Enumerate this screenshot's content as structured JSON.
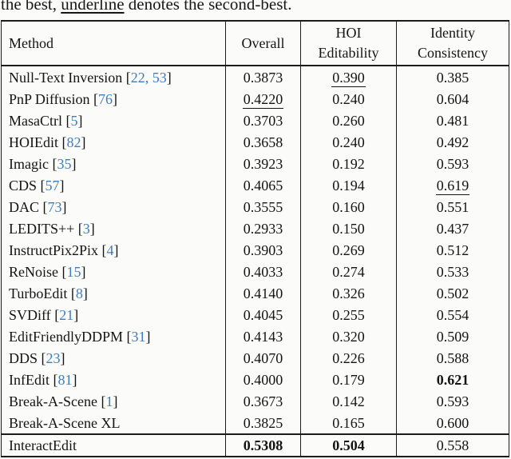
{
  "caption": {
    "prefix": "the best, ",
    "underlined_word": "underline",
    "suffix": " denotes the second-best."
  },
  "colors": {
    "citation_link": "#3d7dbf",
    "text": "#141414"
  },
  "table": {
    "headers": {
      "method": "Method",
      "overall": "Overall",
      "hoi_line1": "HOI",
      "hoi_line2": "Editability",
      "identity_line1": "Identity",
      "identity_line2": "Consistency"
    },
    "rows": [
      {
        "method": "Null-Text Inversion",
        "cite": "22, 53",
        "overall": "0.3873",
        "overall_s": "",
        "hoi": "0.390",
        "hoi_s": "u",
        "identity": "0.385",
        "identity_s": ""
      },
      {
        "method": "PnP Diffusion",
        "cite": "76",
        "overall": "0.4220",
        "overall_s": "u",
        "hoi": "0.240",
        "hoi_s": "",
        "identity": "0.604",
        "identity_s": ""
      },
      {
        "method": "MasaCtrl",
        "cite": "5",
        "overall": "0.3703",
        "overall_s": "",
        "hoi": "0.260",
        "hoi_s": "",
        "identity": "0.481",
        "identity_s": ""
      },
      {
        "method": "HOIEdit",
        "cite": "82",
        "overall": "0.3658",
        "overall_s": "",
        "hoi": "0.240",
        "hoi_s": "",
        "identity": "0.492",
        "identity_s": ""
      },
      {
        "method": "Imagic",
        "cite": "35",
        "overall": "0.3923",
        "overall_s": "",
        "hoi": "0.192",
        "hoi_s": "",
        "identity": "0.593",
        "identity_s": ""
      },
      {
        "method": "CDS",
        "cite": "57",
        "overall": "0.4065",
        "overall_s": "",
        "hoi": "0.194",
        "hoi_s": "",
        "identity": "0.619",
        "identity_s": "u"
      },
      {
        "method": "DAC",
        "cite": "73",
        "overall": "0.3555",
        "overall_s": "",
        "hoi": "0.160",
        "hoi_s": "",
        "identity": "0.551",
        "identity_s": ""
      },
      {
        "method": "LEDITS++",
        "cite": "3",
        "overall": "0.2933",
        "overall_s": "",
        "hoi": "0.150",
        "hoi_s": "",
        "identity": "0.437",
        "identity_s": ""
      },
      {
        "method": "InstructPix2Pix",
        "cite": "4",
        "overall": "0.3903",
        "overall_s": "",
        "hoi": "0.269",
        "hoi_s": "",
        "identity": "0.512",
        "identity_s": ""
      },
      {
        "method": "ReNoise",
        "cite": "15",
        "overall": "0.4033",
        "overall_s": "",
        "hoi": "0.274",
        "hoi_s": "",
        "identity": "0.533",
        "identity_s": ""
      },
      {
        "method": "TurboEdit",
        "cite": "8",
        "overall": "0.4140",
        "overall_s": "",
        "hoi": "0.326",
        "hoi_s": "",
        "identity": "0.502",
        "identity_s": ""
      },
      {
        "method": "SVDiff",
        "cite": "21",
        "overall": "0.4045",
        "overall_s": "",
        "hoi": "0.255",
        "hoi_s": "",
        "identity": "0.554",
        "identity_s": ""
      },
      {
        "method": "EditFriendlyDDPM",
        "cite": "31",
        "overall": "0.4143",
        "overall_s": "",
        "hoi": "0.320",
        "hoi_s": "",
        "identity": "0.509",
        "identity_s": ""
      },
      {
        "method": "DDS",
        "cite": "23",
        "overall": "0.4070",
        "overall_s": "",
        "hoi": "0.226",
        "hoi_s": "",
        "identity": "0.588",
        "identity_s": ""
      },
      {
        "method": "InfEdit",
        "cite": "81",
        "overall": "0.4000",
        "overall_s": "",
        "hoi": "0.179",
        "hoi_s": "",
        "identity": "0.621",
        "identity_s": "b"
      },
      {
        "method": "Break-A-Scene",
        "cite": "1",
        "overall": "0.3673",
        "overall_s": "",
        "hoi": "0.142",
        "hoi_s": "",
        "identity": "0.593",
        "identity_s": ""
      },
      {
        "method": "Break-A-Scene XL",
        "cite": "",
        "overall": "0.3825",
        "overall_s": "",
        "hoi": "0.165",
        "hoi_s": "",
        "identity": "0.600",
        "identity_s": ""
      },
      {
        "method": "InteractEdit",
        "cite": "",
        "overall": "0.5308",
        "overall_s": "b",
        "hoi": "0.504",
        "hoi_s": "b",
        "identity": "0.558",
        "identity_s": "",
        "ours": true
      }
    ]
  }
}
